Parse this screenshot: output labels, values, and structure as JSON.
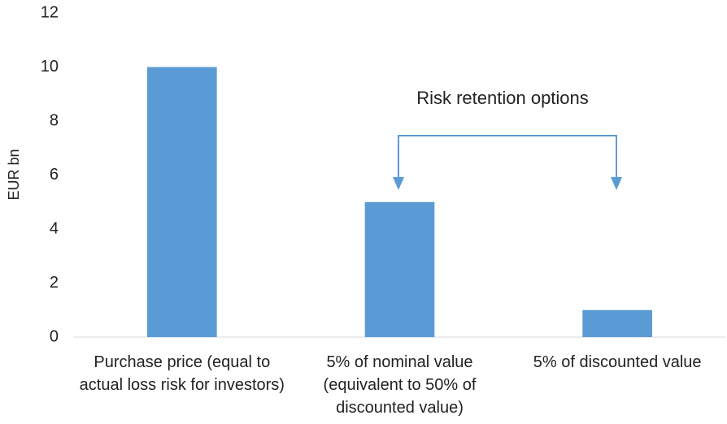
{
  "chart_data": {
    "type": "bar",
    "categories": [
      "Purchase price (equal to actual loss risk for investors)",
      "5% of nominal value (equivalent to 50% of discounted value)",
      "5% of discounted value"
    ],
    "values": [
      10,
      5,
      1
    ],
    "color": "#5b9bd5",
    "ylabel": "EUR bn",
    "annotation": "Risk retention options",
    "ylim": [
      0,
      12
    ],
    "yticks": [
      0,
      2,
      4,
      6,
      8,
      10,
      12
    ],
    "grid": false
  }
}
